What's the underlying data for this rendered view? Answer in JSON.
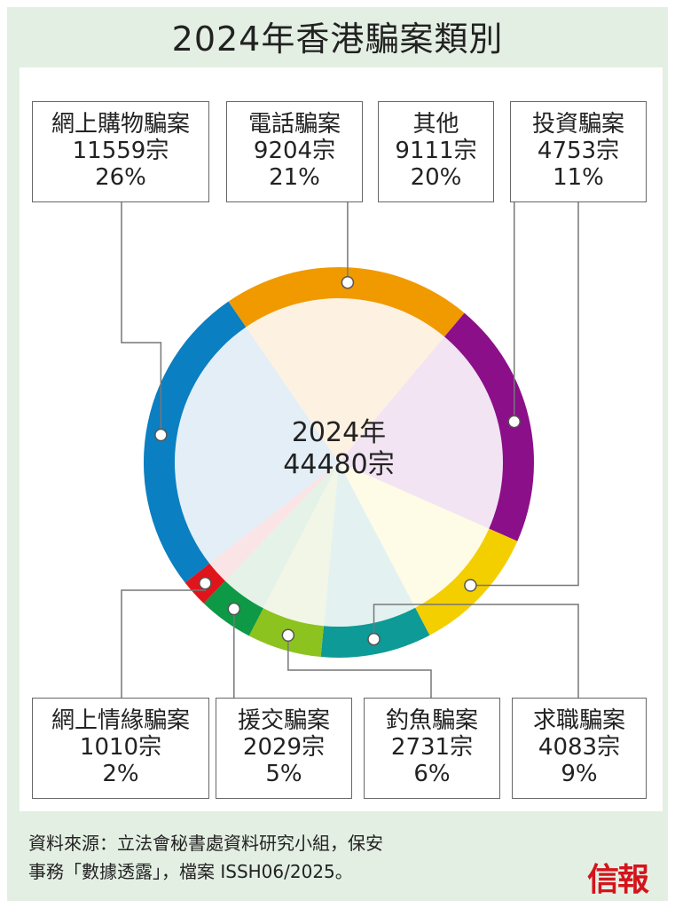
{
  "title": "2024年香港騙案類別",
  "center": {
    "year": "2024年",
    "total": "44480宗"
  },
  "chart_data": {
    "type": "pie",
    "title": "2024年香港騙案類別",
    "total": 44480,
    "slices": [
      {
        "label": "網上購物騙案",
        "count": "11559宗",
        "value": 11559,
        "percent": "26%",
        "color": "#0a7fc1",
        "fill": "#e3eef6"
      },
      {
        "label": "電話騙案",
        "count": "9204宗",
        "value": 9204,
        "percent": "21%",
        "color": "#f09a00",
        "fill": "#fdf1e2"
      },
      {
        "label": "其他",
        "count": "9111宗",
        "value": 9111,
        "percent": "20%",
        "color": "#8b0f88",
        "fill": "#f2e4f3"
      },
      {
        "label": "投資騙案",
        "count": "4753宗",
        "value": 4753,
        "percent": "11%",
        "color": "#f4cf00",
        "fill": "#fefbe6"
      },
      {
        "label": "求職騙案",
        "count": "4083宗",
        "value": 4083,
        "percent": "9%",
        "color": "#0e9a96",
        "fill": "#e3f2f1"
      },
      {
        "label": "釣魚騙案",
        "count": "2731宗",
        "value": 2731,
        "percent": "6%",
        "color": "#8dc31f",
        "fill": "#f2f6e6"
      },
      {
        "label": "援交騙案",
        "count": "2029宗",
        "value": 2029,
        "percent": "5%",
        "color": "#0d9945",
        "fill": "#e4f2e8"
      },
      {
        "label": "網上情緣騙案",
        "count": "1010宗",
        "value": 1010,
        "percent": "2%",
        "color": "#e0141b",
        "fill": "#fbe4e5"
      }
    ]
  },
  "source": {
    "line1": "資料來源：立法會秘書處資料研究小組，保安",
    "line2": "事務「數據透露」，檔案 ISSH06/2025。"
  },
  "logo": "信報"
}
